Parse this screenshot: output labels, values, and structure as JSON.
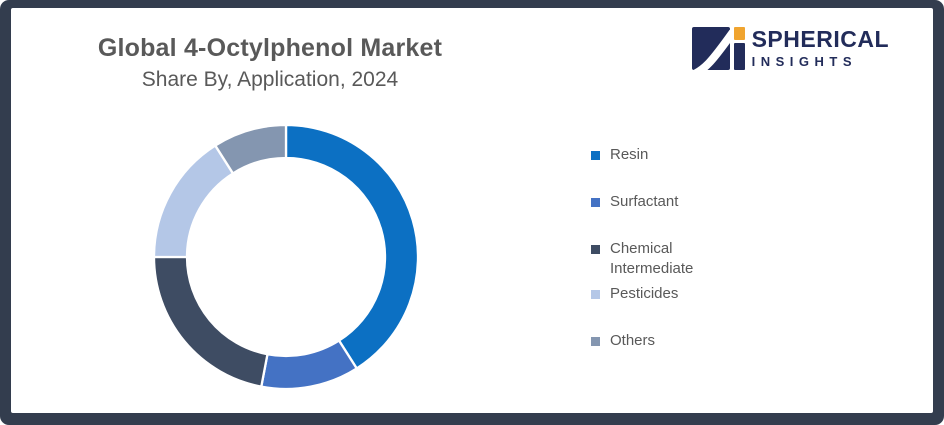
{
  "frame": {
    "border_color": "#333D4E",
    "background": "#FFFFFF"
  },
  "header": {
    "title": "Global 4-Octylphenol Market",
    "subtitle": "Share By, Application, 2024",
    "text_color": "#595959"
  },
  "logo": {
    "brand_top": "SPHERICAL",
    "brand_bottom": "INSIGHTS",
    "navy": "#222C5A",
    "orange": "#F0A42F"
  },
  "chart_data": {
    "type": "pie",
    "subtype": "donut",
    "title": "Global 4-Octylphenol Market Share By, Application, 2024",
    "start_angle_deg": 0,
    "direction": "clockwise",
    "legend_position": "right",
    "data_labels": false,
    "categories": [
      "Resin",
      "Surfactant",
      "Chemical Intermediate",
      "Pesticides",
      "Others"
    ],
    "values": [
      41,
      12,
      22,
      16,
      9
    ],
    "unit": "%",
    "colors": [
      "#0C70C3",
      "#4472C4",
      "#3E4C63",
      "#B4C7E7",
      "#8496B0"
    ],
    "legend_text_color": "#595959",
    "inner_radius_ratio": 0.75
  }
}
